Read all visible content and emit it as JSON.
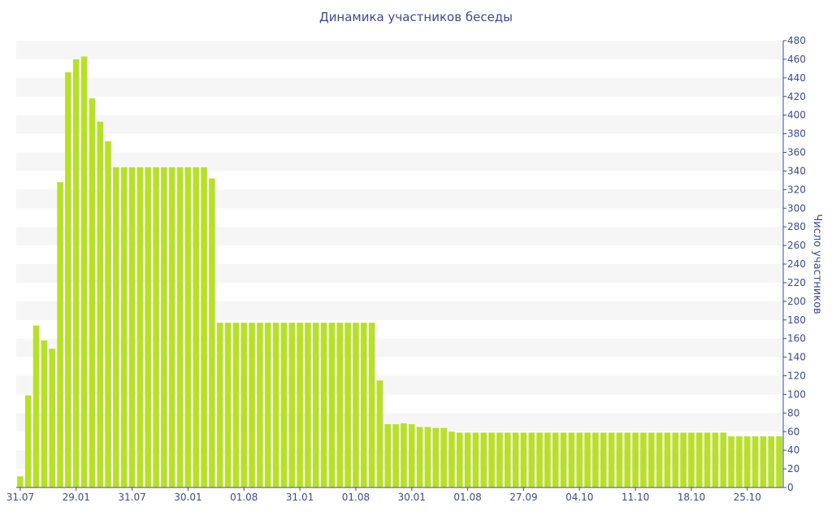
{
  "chart_data": {
    "type": "bar",
    "title": "Динамика участников беседы",
    "ylabel": "Число участников",
    "xlabel": "",
    "ylim": [
      0,
      480
    ],
    "y_ticks": [
      0,
      20,
      40,
      60,
      80,
      100,
      120,
      140,
      160,
      180,
      200,
      220,
      240,
      260,
      280,
      300,
      320,
      340,
      360,
      380,
      400,
      420,
      440,
      460,
      480
    ],
    "x_tick_labels": [
      {
        "index": 0,
        "label": "31.07"
      },
      {
        "index": 7,
        "label": "29.01"
      },
      {
        "index": 14,
        "label": "31.07"
      },
      {
        "index": 21,
        "label": "30.01"
      },
      {
        "index": 28,
        "label": "01.08"
      },
      {
        "index": 35,
        "label": "31.01"
      },
      {
        "index": 42,
        "label": "01.08"
      },
      {
        "index": 49,
        "label": "30.01"
      },
      {
        "index": 56,
        "label": "01.08"
      },
      {
        "index": 63,
        "label": "27.09"
      },
      {
        "index": 70,
        "label": "04.10"
      },
      {
        "index": 77,
        "label": "11.10"
      },
      {
        "index": 84,
        "label": "18.10"
      },
      {
        "index": 91,
        "label": "25.10"
      }
    ],
    "values": [
      12,
      99,
      174,
      158,
      149,
      328,
      446,
      460,
      463,
      418,
      393,
      372,
      344,
      344,
      344,
      344,
      344,
      344,
      344,
      344,
      344,
      344,
      344,
      344,
      332,
      177,
      177,
      177,
      177,
      177,
      177,
      177,
      177,
      177,
      177,
      177,
      177,
      177,
      177,
      177,
      177,
      177,
      177,
      177,
      177,
      115,
      68,
      68,
      69,
      68,
      65,
      65,
      64,
      64,
      60,
      59,
      59,
      59,
      59,
      59,
      59,
      59,
      59,
      59,
      59,
      59,
      59,
      59,
      59,
      59,
      59,
      59,
      59,
      59,
      59,
      59,
      59,
      59,
      59,
      59,
      59,
      59,
      59,
      59,
      59,
      59,
      59,
      59,
      59,
      55,
      55,
      55,
      55,
      55,
      55,
      55
    ],
    "bar_color": "#b8e02a",
    "grid": "horizontal bands",
    "band_color": "#f6f6f6",
    "axis_color": "#3d4a8f",
    "y_axis_side": "right"
  }
}
